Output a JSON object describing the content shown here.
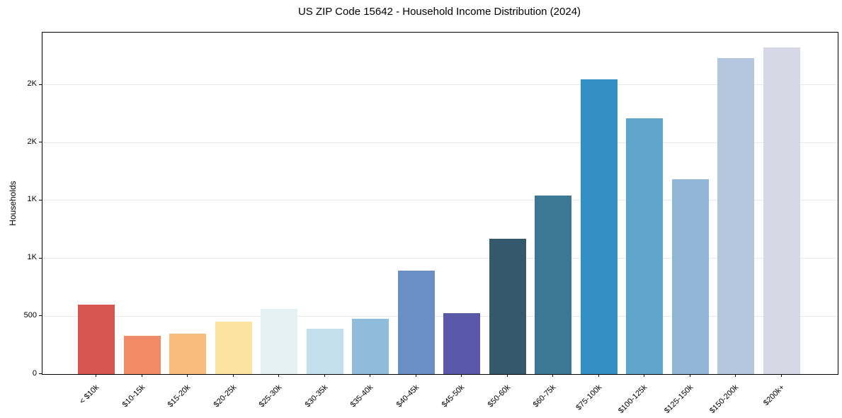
{
  "chart_data": {
    "type": "bar",
    "title": "US ZIP Code 15642 - Household Income Distribution (2024)",
    "xlabel": "",
    "ylabel": "Households",
    "categories": [
      "< $10k",
      "$10-15k",
      "$15-20k",
      "$20-25k",
      "$25-30k",
      "$30-35k",
      "$35-40k",
      "$40-45k",
      "$45-50k",
      "$50-60k",
      "$60-75k",
      "$75-100k",
      "$100-125k",
      "$125-150k",
      "$150-200k",
      "$200k+"
    ],
    "values": [
      600,
      330,
      350,
      450,
      565,
      390,
      475,
      895,
      525,
      1170,
      1540,
      2545,
      2210,
      1685,
      2730,
      2820
    ],
    "bar_colors": [
      "#d6564f",
      "#f28a67",
      "#f9bc7c",
      "#fde3a0",
      "#e4f1f2",
      "#c3dfee",
      "#8fbcdb",
      "#6a8ec5",
      "#5a58a9",
      "#35596c",
      "#3a7896",
      "#348fc5",
      "#60a6cc",
      "#92b6d6",
      "#b4c5de",
      "#d7d8e5"
    ],
    "ylim": [
      0,
      2950
    ],
    "yticks": [
      {
        "value": 0,
        "label": "0"
      },
      {
        "value": 500,
        "label": "500"
      },
      {
        "value": 1000,
        "label": "1K"
      },
      {
        "value": 1500,
        "label": "1K"
      },
      {
        "value": 2000,
        "label": "2K"
      },
      {
        "value": 2500,
        "label": "2K"
      }
    ],
    "grid": "horizontal",
    "gridline_color": "#e8e8e8",
    "legend": "none"
  }
}
